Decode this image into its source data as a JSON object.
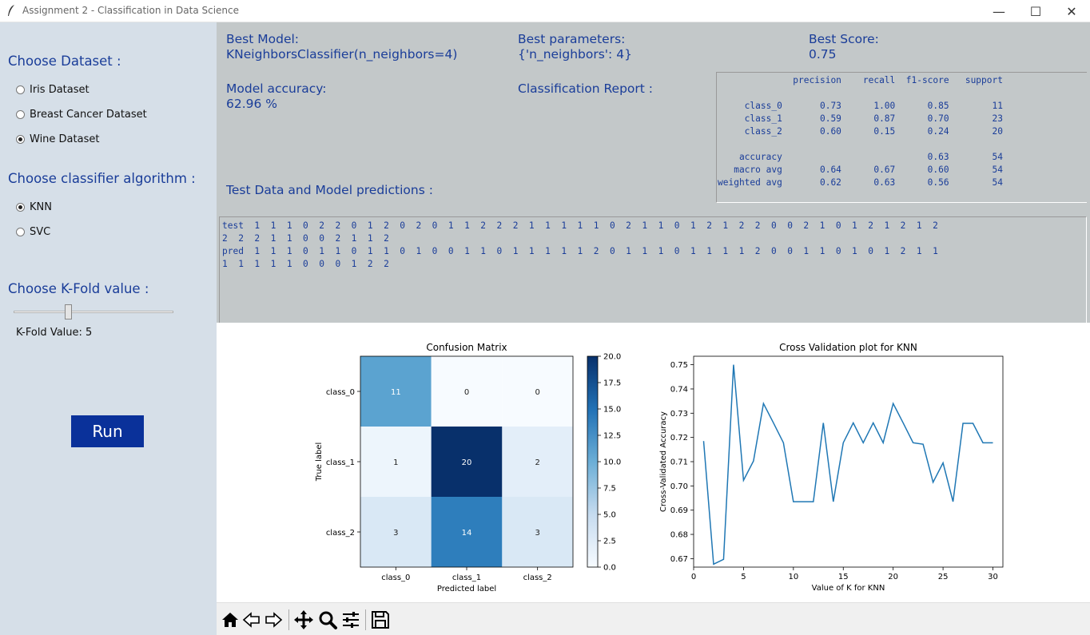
{
  "window": {
    "title": "Assignment 2 - Classification in Data Science",
    "minimize": "—",
    "maximize": "☐",
    "close": "✕"
  },
  "sidebar": {
    "dataset_heading": "Choose Dataset :",
    "datasets": [
      {
        "label": "Iris Dataset",
        "selected": false
      },
      {
        "label": "Breast Cancer Dataset",
        "selected": false
      },
      {
        "label": "Wine Dataset",
        "selected": true
      }
    ],
    "classifier_heading": "Choose classifier algorithm :",
    "classifiers": [
      {
        "label": "KNN",
        "selected": true
      },
      {
        "label": "SVC",
        "selected": false
      }
    ],
    "kfold_heading": "Choose K-Fold value :",
    "kfold_value_label": "K-Fold Value: 5",
    "kfold_slider_value": 5,
    "run_label": "Run"
  },
  "results": {
    "best_model_title": "Best Model:",
    "best_model_value": "KNeighborsClassifier(n_neighbors=4)",
    "best_params_title": "Best parameters:",
    "best_params_value": "{'n_neighbors': 4}",
    "best_score_title": "Best Score:",
    "best_score_value": "0.75",
    "accuracy_title": "Model accuracy:",
    "accuracy_value": "62.96 %",
    "report_title": "Classification Report :",
    "predictions_title": "Test Data and Model predictions :",
    "report_text": "              precision    recall  f1-score   support\n\n     class_0       0.73      1.00      0.85        11\n     class_1       0.59      0.87      0.70        23\n     class_2       0.60      0.15      0.24        20\n\n    accuracy                           0.63        54\n   macro avg       0.64      0.67      0.60        54\nweighted avg       0.62      0.63      0.56        54",
    "predictions_text": "test  1  1  1  0  2  2  0  1  2  0  2  0  1  1  2  2  2  1  1  1  1  1  0  2  1  1  0  1  2  1  2  2  0  0  2  1  0  1  2  1  2  1  2\n2  2  2  1  1  0  0  2  1  1  2\npred  1  1  1  0  1  1  0  1  1  0  1  0  0  1  1  0  1  1  1  1  1  2  0  1  1  1  0  1  1  1  1  2  0  0  1  1  0  1  0  1  2  1  1\n1  1  1  1  1  0  0  0  1  2  2"
  },
  "chart_data": [
    {
      "type": "heatmap",
      "title": "Confusion Matrix",
      "xlabel": "Predicted label",
      "ylabel": "True label",
      "x_categories": [
        "class_0",
        "class_1",
        "class_2"
      ],
      "y_categories": [
        "class_0",
        "class_1",
        "class_2"
      ],
      "values": [
        [
          11,
          0,
          0
        ],
        [
          1,
          20,
          2
        ],
        [
          3,
          14,
          3
        ]
      ],
      "colorbar_range": [
        0,
        20
      ],
      "colorbar_ticks": [
        "0.0",
        "2.5",
        "5.0",
        "7.5",
        "10.0",
        "12.5",
        "15.0",
        "17.5",
        "20.0"
      ],
      "colormap": "Blues"
    },
    {
      "type": "line",
      "title": "Cross Validation plot for KNN",
      "xlabel": "Value of K for KNN",
      "ylabel": "Cross-Validated Accuracy",
      "xlim": [
        0,
        31
      ],
      "ylim": [
        0.6665,
        0.7535
      ],
      "x_ticks": [
        0,
        5,
        10,
        15,
        20,
        25,
        30
      ],
      "y_ticks": [
        0.67,
        0.68,
        0.69,
        0.7,
        0.71,
        0.72,
        0.73,
        0.74,
        0.75
      ],
      "x": [
        1,
        2,
        3,
        4,
        5,
        6,
        7,
        8,
        9,
        10,
        11,
        12,
        13,
        14,
        15,
        16,
        17,
        18,
        19,
        20,
        21,
        22,
        23,
        24,
        25,
        26,
        27,
        28,
        29,
        30
      ],
      "series": [
        {
          "values": [
            0.7185,
            0.6677,
            0.6697,
            0.75,
            0.7023,
            0.7103,
            0.734,
            0.726,
            0.7178,
            0.6935,
            0.6935,
            0.6935,
            0.726,
            0.6935,
            0.7178,
            0.726,
            0.7178,
            0.726,
            0.7178,
            0.734,
            0.726,
            0.7178,
            0.7172,
            0.7015,
            0.7095,
            0.6935,
            0.7258,
            0.7258,
            0.7178,
            0.7178
          ],
          "color": "#1f77b4"
        }
      ]
    }
  ],
  "toolbar": {
    "icons": [
      "home-icon",
      "back-icon",
      "forward-icon",
      "pan-icon",
      "zoom-icon",
      "configure-icon",
      "save-icon"
    ]
  }
}
